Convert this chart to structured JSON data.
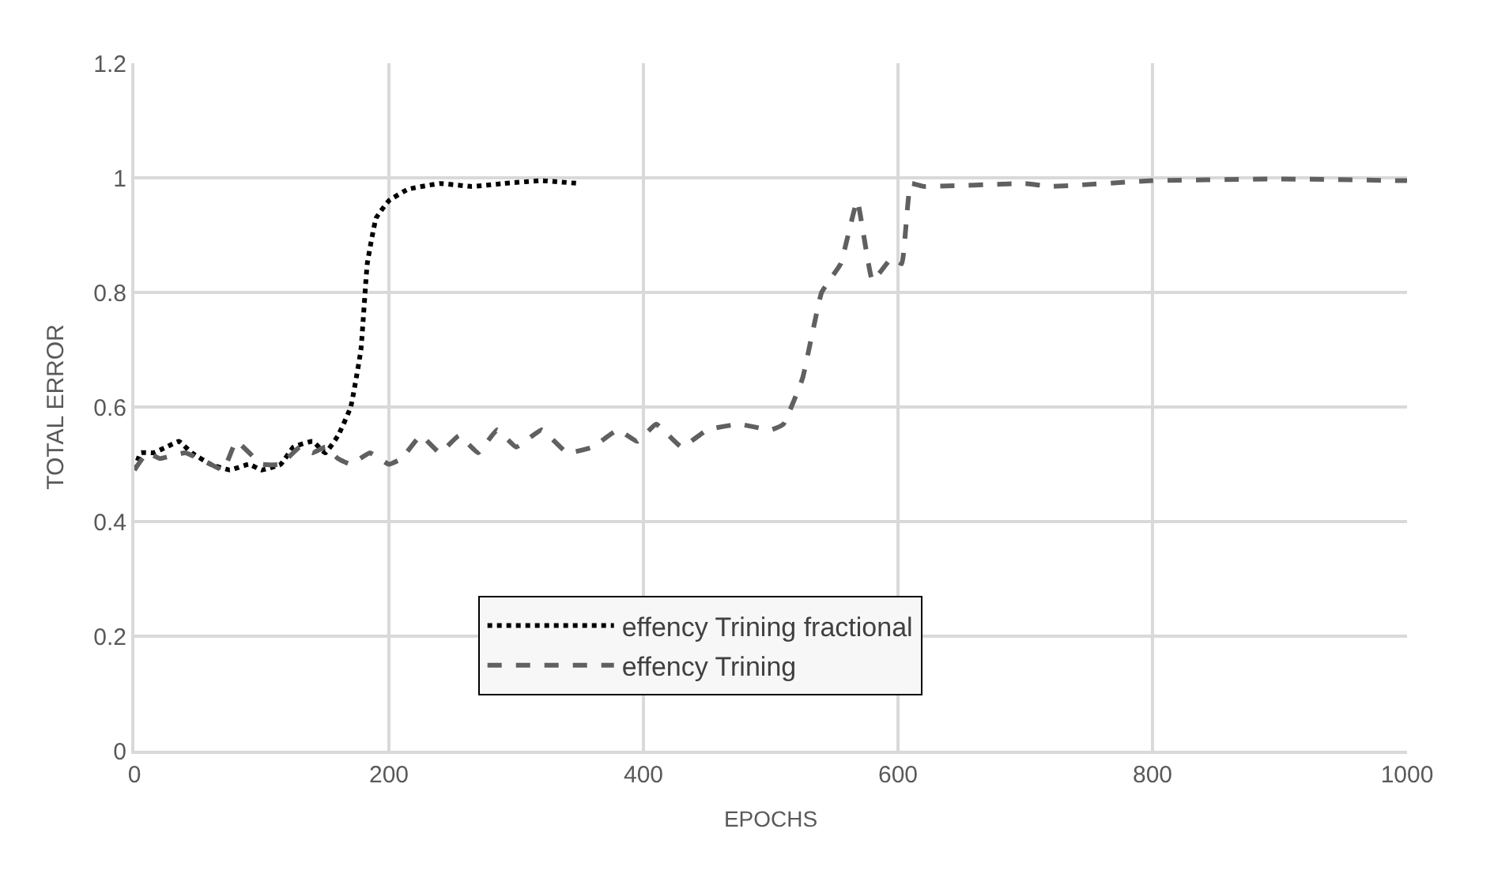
{
  "chart_data": {
    "type": "line",
    "xlabel": "EPOCHS",
    "ylabel": "TOTAL ERROR",
    "xlim": [
      0,
      1000
    ],
    "xticks": [
      0,
      200,
      400,
      600,
      800,
      1000
    ],
    "ylim": [
      0,
      1.2
    ],
    "yticks": [
      0,
      0.2,
      0.4,
      0.6,
      0.8,
      1,
      1.2
    ],
    "grid": true,
    "legend": "bottom",
    "marker": "none",
    "series": [
      {
        "name": "effency Trining fractional",
        "color": "#000000",
        "line_style": "dotted",
        "x": [
          0,
          5,
          15,
          25,
          35,
          45,
          60,
          75,
          90,
          100,
          115,
          125,
          140,
          150,
          160,
          170,
          178,
          183,
          190,
          200,
          215,
          240,
          265,
          290,
          320,
          350
        ],
        "values": [
          0.49,
          0.52,
          0.52,
          0.53,
          0.54,
          0.52,
          0.5,
          0.49,
          0.5,
          0.49,
          0.5,
          0.53,
          0.54,
          0.52,
          0.55,
          0.6,
          0.7,
          0.85,
          0.93,
          0.96,
          0.98,
          0.99,
          0.985,
          0.99,
          0.995,
          0.99
        ]
      },
      {
        "name": "effency Trining",
        "color": "#606060",
        "line_style": "dashed",
        "x": [
          0,
          10,
          20,
          40,
          60,
          70,
          80,
          100,
          115,
          130,
          140,
          150,
          160,
          170,
          185,
          200,
          210,
          225,
          240,
          255,
          270,
          285,
          300,
          320,
          340,
          360,
          380,
          395,
          410,
          430,
          450,
          475,
          500,
          510,
          525,
          540,
          555,
          568,
          580,
          595,
          603,
          610,
          620,
          700,
          720,
          800,
          900,
          1000
        ],
        "values": [
          0.49,
          0.52,
          0.51,
          0.52,
          0.5,
          0.49,
          0.54,
          0.5,
          0.5,
          0.53,
          0.52,
          0.53,
          0.51,
          0.5,
          0.52,
          0.5,
          0.51,
          0.55,
          0.52,
          0.55,
          0.52,
          0.56,
          0.53,
          0.56,
          0.52,
          0.53,
          0.56,
          0.54,
          0.57,
          0.53,
          0.56,
          0.57,
          0.56,
          0.57,
          0.65,
          0.8,
          0.85,
          0.96,
          0.82,
          0.86,
          0.85,
          0.99,
          0.985,
          0.99,
          0.985,
          0.995,
          0.998,
          0.995
        ]
      }
    ]
  }
}
